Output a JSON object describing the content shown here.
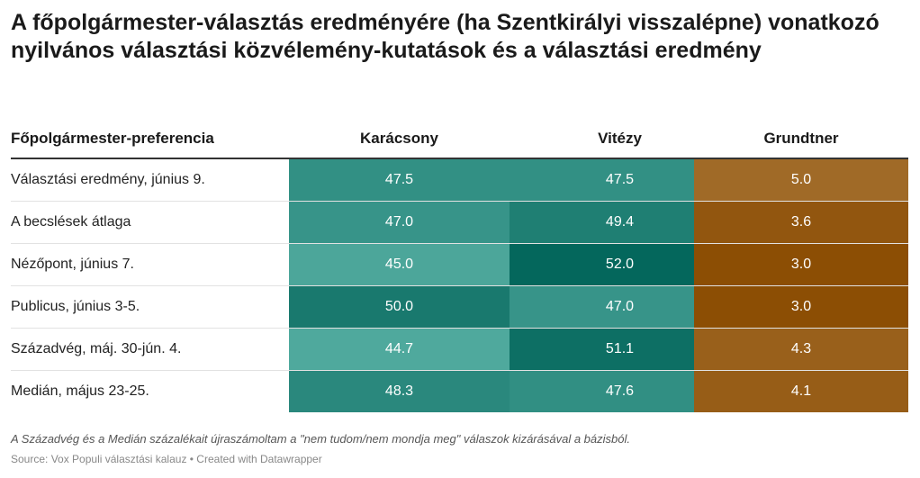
{
  "title": "A főpolgármester-választás eredményére (ha Szentkirályi visszalépne) vonatkozó nyilvános választási közvélemény-kutatások és a választási eredmény",
  "chart_data": {
    "type": "table",
    "row_header": "Főpolgármester-preferencia",
    "columns": [
      "Karácsony",
      "Vitézy",
      "Grundtner"
    ],
    "rows": [
      {
        "label": "Választási eredmény, június 9.",
        "values": [
          "47.5",
          "47.5",
          "5.0"
        ]
      },
      {
        "label": "A becslések átlaga",
        "values": [
          "47.0",
          "49.4",
          "3.6"
        ]
      },
      {
        "label": "Nézőpont, június 7.",
        "values": [
          "45.0",
          "52.0",
          "3.0"
        ]
      },
      {
        "label": "Publicus, június 3-5.",
        "values": [
          "50.0",
          "47.0",
          "3.0"
        ]
      },
      {
        "label": "Századvég, máj. 30-jún. 4.",
        "values": [
          "44.7",
          "51.1",
          "4.3"
        ]
      },
      {
        "label": "Medián, május 23-25.",
        "values": [
          "48.3",
          "47.6",
          "4.1"
        ]
      }
    ],
    "colors": {
      "green_light": "#4fa99d",
      "green_dark": "#04675c",
      "brown_light": "#a06a27",
      "brown_dark": "#8c4e04"
    }
  },
  "footer": {
    "note": "A Századvég és a Medián százalékait újraszámoltam a \"nem tudom/nem mondja meg\" válaszok kizárásával a bázisból.",
    "source": "Source: Vox Populi választási kalauz • Created with Datawrapper"
  }
}
